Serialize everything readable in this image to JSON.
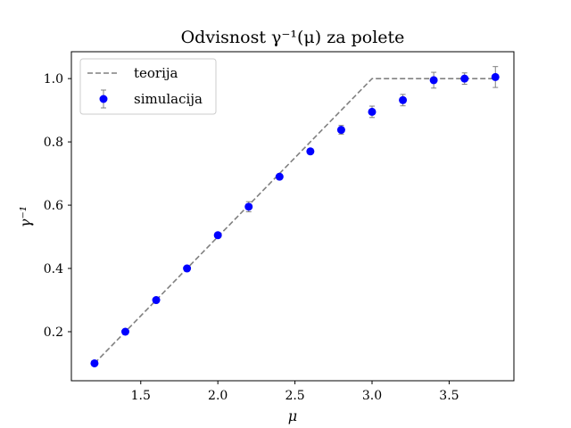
{
  "chart_data": {
    "type": "scatter",
    "title": "Odvisnost γ⁻¹(μ) za polete",
    "xlabel": "μ",
    "ylabel": "γ⁻¹",
    "xlim": [
      1.05,
      3.92
    ],
    "ylim": [
      0.045,
      1.085
    ],
    "xticks": [
      1.5,
      2.0,
      2.5,
      3.0,
      3.5
    ],
    "xtick_labels": [
      "1.5",
      "2.0",
      "2.5",
      "3.0",
      "3.5"
    ],
    "yticks": [
      0.2,
      0.4,
      0.6,
      0.8,
      1.0
    ],
    "ytick_labels": [
      "0.2",
      "0.4",
      "0.6",
      "0.8",
      "1.0"
    ],
    "grid": false,
    "legend_position": "top-left",
    "series": [
      {
        "name": "teorija",
        "kind": "dashed-line",
        "color": "#808080",
        "x": [
          1.2,
          3.0,
          3.8
        ],
        "y": [
          0.1,
          1.0,
          1.0
        ]
      },
      {
        "name": "simulacija",
        "kind": "errorbar",
        "color": "#0000ff",
        "errorbar_color": "#808080",
        "x": [
          1.2,
          1.4,
          1.6,
          1.8,
          2.0,
          2.2,
          2.4,
          2.6,
          2.8,
          3.0,
          3.2,
          3.4,
          3.6,
          3.8
        ],
        "y": [
          0.1,
          0.2,
          0.3,
          0.4,
          0.505,
          0.595,
          0.69,
          0.77,
          0.838,
          0.895,
          0.932,
          0.995,
          1.0,
          1.005
        ],
        "yerr": [
          0.004,
          0.004,
          0.005,
          0.005,
          0.006,
          0.016,
          0.007,
          0.008,
          0.014,
          0.018,
          0.018,
          0.025,
          0.018,
          0.033
        ]
      }
    ]
  }
}
